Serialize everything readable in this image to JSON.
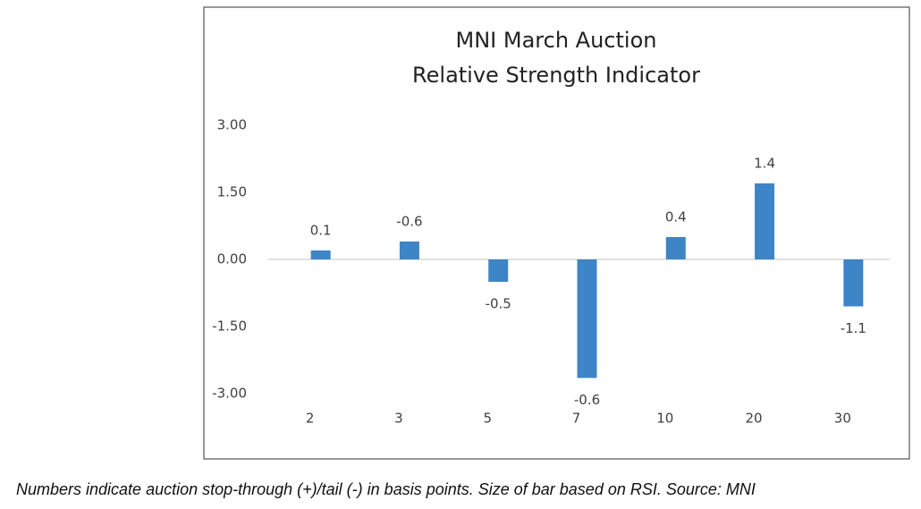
{
  "chart_data": {
    "type": "bar",
    "title": "MNI March Auction",
    "subtitle": "Relative Strength Indicator",
    "categories": [
      "2",
      "3",
      "5",
      "7",
      "10",
      "20",
      "30"
    ],
    "values": [
      0.2,
      0.4,
      -0.5,
      -2.65,
      0.5,
      1.7,
      -1.05
    ],
    "annotations": [
      "0.1",
      "-0.6",
      "-0.5",
      "-0.6",
      "0.4",
      "1.4",
      "-1.1"
    ],
    "color": "#3d85c6",
    "ylim": [
      -3,
      3
    ],
    "yticks": [
      {
        "value": 3,
        "label": "3.00"
      },
      {
        "value": 1.5,
        "label": "1.50"
      },
      {
        "value": 0,
        "label": "0.00"
      },
      {
        "value": -1.5,
        "label": "-1.50"
      },
      {
        "value": -3,
        "label": "-3.00"
      }
    ],
    "grid": false,
    "caption": "Numbers indicate auction stop-through (+)/tail (-) in basis points. Size of bar based on RSI. Source: MNI"
  }
}
